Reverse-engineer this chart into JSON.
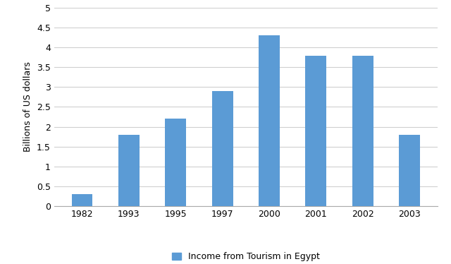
{
  "years": [
    "1982",
    "1993",
    "1995",
    "1997",
    "2000",
    "2001",
    "2002",
    "2003"
  ],
  "values": [
    0.3,
    1.8,
    2.2,
    2.9,
    4.3,
    3.8,
    3.8,
    1.8
  ],
  "bar_color": "#5b9bd5",
  "ylabel": "Billions of US dollars",
  "ylim": [
    0,
    5
  ],
  "yticks": [
    0,
    0.5,
    1.0,
    1.5,
    2.0,
    2.5,
    3.0,
    3.5,
    4.0,
    4.5,
    5.0
  ],
  "legend_label": "Income from Tourism in Egypt",
  "background_color": "#ffffff",
  "grid_color": "#d0d0d0",
  "bar_width": 0.45,
  "tick_fontsize": 9,
  "ylabel_fontsize": 9,
  "legend_fontsize": 9
}
